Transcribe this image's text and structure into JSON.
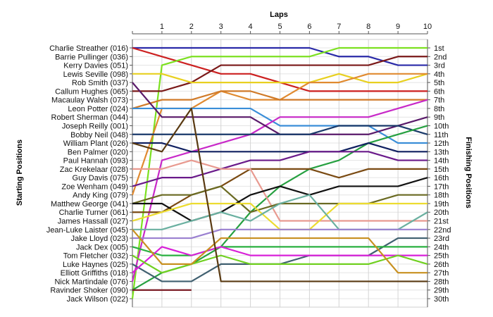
{
  "chart_data": {
    "type": "line",
    "title": "",
    "xlabel": "Laps",
    "ylabel_left": "Starting Positions",
    "ylabel_right": "Finishing Positions",
    "x_ticks": [
      "1",
      "2",
      "3",
      "4",
      "5",
      "6",
      "7",
      "8",
      "9",
      "10"
    ],
    "xlim": [
      0,
      10
    ],
    "ylim": [
      1,
      30
    ],
    "y_inverted": true,
    "grid": true,
    "start_labels": [
      "Charlie Streather (016)",
      "Barrie Pullinger (036)",
      "Kerry Davies (051)",
      "Lewis Seville (098)",
      "Rob Smith (037)",
      "Callum Hughes (065)",
      "Macaulay Walsh (073)",
      "Leon Potter (024)",
      "Robert Sherman (044)",
      "Joseph Reilly (001)",
      "Bobby Neil (048)",
      "William Plant (026)",
      "Ben Palmer (020)",
      "Paul Hannah (093)",
      "Zac Krekelaar (028)",
      "Guy Davis (075)",
      "Zoe Wenham (049)",
      "Andy King (079)",
      "Matthew George (041)",
      "Charlie Turner (061)",
      "James Hassall (027)",
      "Jean-Luke Laister (045)",
      "Jake Lloyd (023)",
      "Jack Dex (005)",
      "Tom Fletcher (032)",
      "Luke Haynes (025)",
      "Elliott Griffiths (018)",
      "Nick Martindale (076)",
      "Ravinder Shoker (090)",
      "Jack Wilson (022)"
    ],
    "finish_labels": [
      "1st",
      "2nd",
      "3rd",
      "4th",
      "5th",
      "6th",
      "7th",
      "8th",
      "9th",
      "10th",
      "11th",
      "12th",
      "13th",
      "14th",
      "15th",
      "16th",
      "17th",
      "18th",
      "19th",
      "20th",
      "21st",
      "22nd",
      "23rd",
      "24th",
      "25th",
      "26th",
      "27th",
      "28th",
      "29th",
      "30th"
    ],
    "series": [
      {
        "color": "#2a2aa8",
        "values": [
          1,
          1,
          1,
          1,
          1,
          1,
          1,
          2,
          2,
          3,
          3
        ]
      },
      {
        "color": "#cc2020",
        "values": [
          1,
          2,
          3,
          4,
          4,
          5,
          6,
          6,
          6,
          6,
          6
        ]
      },
      {
        "color": "#7ce020",
        "values": [
          30,
          3,
          2,
          2,
          2,
          2,
          2,
          1,
          1,
          1,
          1
        ]
      },
      {
        "color": "#7a1818",
        "values": [
          6,
          6,
          5,
          3,
          3,
          3,
          3,
          3,
          3,
          2,
          2
        ]
      },
      {
        "color": "#e8d020",
        "values": [
          4,
          4,
          5,
          5,
          5,
          5,
          5,
          4,
          5,
          5,
          4
        ]
      },
      {
        "color": "#e08a30",
        "values": [
          18,
          8,
          8,
          6,
          7,
          7,
          5,
          5,
          4,
          4,
          4
        ]
      },
      {
        "color": "#d07a28",
        "values": [
          8,
          7,
          7,
          6,
          6,
          7,
          7,
          7,
          7,
          7,
          7
        ]
      },
      {
        "color": "#3a8ed8",
        "values": [
          8,
          8,
          8,
          8,
          8,
          10,
          10,
          10,
          10,
          12,
          12
        ]
      },
      {
        "color": "#c829c8",
        "values": [
          28,
          14,
          13,
          12,
          11,
          9,
          9,
          9,
          9,
          8,
          7
        ]
      },
      {
        "color": "#5a1a6a",
        "values": [
          5,
          9,
          9,
          9,
          9,
          11,
          11,
          11,
          11,
          10,
          9
        ]
      },
      {
        "color": "#1a3a6a",
        "values": [
          11,
          11,
          11,
          11,
          11,
          11,
          11,
          10,
          10,
          10,
          11
        ]
      },
      {
        "color": "#26a040",
        "values": [
          29,
          27,
          26,
          24,
          20,
          17,
          15,
          14,
          12,
          11,
          10
        ]
      },
      {
        "color": "#102060",
        "values": [
          12,
          12,
          13,
          13,
          13,
          13,
          13,
          13,
          12,
          13,
          13
        ]
      },
      {
        "color": "#6a1a8a",
        "values": [
          17,
          16,
          16,
          15,
          14,
          14,
          13,
          13,
          13,
          14,
          14
        ]
      },
      {
        "color": "#7a4a12",
        "values": [
          20,
          20,
          18,
          17,
          15,
          15,
          15,
          16,
          15,
          15,
          15
        ]
      },
      {
        "color": "#e89a90",
        "values": [
          15,
          15,
          14,
          15,
          15,
          21,
          21,
          21,
          21,
          21,
          21
        ]
      },
      {
        "color": "#6a6a22",
        "values": [
          19,
          18,
          18,
          17,
          20,
          19,
          19,
          19,
          19,
          18,
          18
        ]
      },
      {
        "color": "#111111",
        "values": [
          19,
          19,
          21,
          20,
          18,
          17,
          18,
          17,
          17,
          17,
          16
        ]
      },
      {
        "color": "#ecdc30",
        "values": [
          21,
          20,
          19,
          19,
          19,
          22,
          22,
          19,
          19,
          19,
          19
        ]
      },
      {
        "color": "#6ab0a0",
        "values": [
          22,
          22,
          21,
          20,
          21,
          19,
          18,
          22,
          22,
          22,
          20
        ]
      },
      {
        "color": "#9a80d0",
        "values": [
          23,
          23,
          23,
          22,
          22,
          22,
          22,
          22,
          22,
          22,
          22
        ]
      },
      {
        "color": "#406070",
        "values": [
          26,
          28,
          28,
          26,
          26,
          26,
          25,
          25,
          25,
          23,
          23
        ]
      },
      {
        "color": "#2ab040",
        "values": [
          24,
          25,
          25,
          24,
          24,
          24,
          24,
          24,
          24,
          24,
          24
        ]
      },
      {
        "color": "#d820d8",
        "values": [
          27,
          24,
          25,
          24,
          25,
          25,
          25,
          25,
          25,
          25,
          25
        ]
      },
      {
        "color": "#70d020",
        "values": [
          25,
          27,
          26,
          25,
          26,
          26,
          26,
          26,
          26,
          25,
          26
        ]
      },
      {
        "color": "#c89020",
        "values": [
          22,
          26,
          26,
          23,
          23,
          23,
          23,
          23,
          23,
          27,
          27
        ]
      },
      {
        "color": "#5a3a12",
        "values": [
          12,
          13,
          8,
          28,
          28,
          28,
          28,
          28,
          28,
          28,
          28
        ]
      },
      {
        "color": "#7a1a22",
        "values": [
          29,
          29,
          29
        ]
      }
    ]
  }
}
